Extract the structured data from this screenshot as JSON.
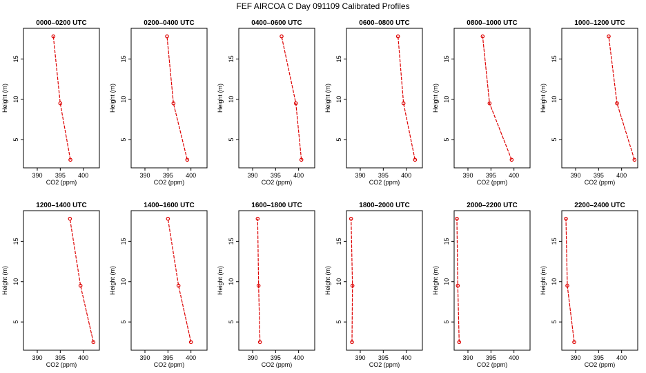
{
  "figure": {
    "title": "FEF AIRCOA C  Day 091109  Calibrated Profiles"
  },
  "style": {
    "line_color": "#dd0000",
    "axis_color": "#000000"
  },
  "chart_data": [
    {
      "type": "line",
      "title": "0000–0200 UTC",
      "xlabel": "CO2 (ppm)",
      "ylabel": "Height (m)",
      "xlim": [
        387,
        403.5
      ],
      "ylim": [
        1.5,
        18.8
      ],
      "xticks": [
        390,
        395,
        400
      ],
      "yticks": [
        5,
        10,
        15
      ],
      "series": [
        {
          "x": [
            397.2,
            395.0,
            393.5
          ],
          "y": [
            2.5,
            9.5,
            17.8
          ]
        }
      ]
    },
    {
      "type": "line",
      "title": "0200–0400 UTC",
      "xlabel": "CO2 (ppm)",
      "ylabel": "Height (m)",
      "xlim": [
        387,
        403.5
      ],
      "ylim": [
        1.5,
        18.8
      ],
      "xticks": [
        390,
        395,
        400
      ],
      "yticks": [
        5,
        10,
        15
      ],
      "series": [
        {
          "x": [
            399.2,
            396.2,
            394.8
          ],
          "y": [
            2.5,
            9.5,
            17.8
          ]
        }
      ]
    },
    {
      "type": "line",
      "title": "0400–0600 UTC",
      "xlabel": "CO2 (ppm)",
      "ylabel": "Height (m)",
      "xlim": [
        387,
        403.5
      ],
      "ylim": [
        1.5,
        18.8
      ],
      "xticks": [
        390,
        395,
        400
      ],
      "yticks": [
        5,
        10,
        15
      ],
      "series": [
        {
          "x": [
            400.6,
            399.4,
            396.3
          ],
          "y": [
            2.5,
            9.5,
            17.8
          ]
        }
      ]
    },
    {
      "type": "line",
      "title": "0600–0800 UTC",
      "xlabel": "CO2 (ppm)",
      "ylabel": "Height (m)",
      "xlim": [
        387,
        403.5
      ],
      "ylim": [
        1.5,
        18.8
      ],
      "xticks": [
        390,
        395,
        400
      ],
      "yticks": [
        5,
        10,
        15
      ],
      "series": [
        {
          "x": [
            401.9,
            399.4,
            398.2
          ],
          "y": [
            2.5,
            9.5,
            17.8
          ]
        }
      ]
    },
    {
      "type": "line",
      "title": "0800–1000 UTC",
      "xlabel": "CO2 (ppm)",
      "ylabel": "Height (m)",
      "xlim": [
        387,
        403.5
      ],
      "ylim": [
        1.5,
        18.8
      ],
      "xticks": [
        390,
        395,
        400
      ],
      "yticks": [
        5,
        10,
        15
      ],
      "series": [
        {
          "x": [
            399.5,
            394.7,
            393.2
          ],
          "y": [
            2.5,
            9.5,
            17.8
          ]
        }
      ]
    },
    {
      "type": "line",
      "title": "1000–1200 UTC",
      "xlabel": "CO2 (ppm)",
      "ylabel": "Height (m)",
      "xlim": [
        387,
        403.5
      ],
      "ylim": [
        1.5,
        18.8
      ],
      "xticks": [
        390,
        395,
        400
      ],
      "yticks": [
        5,
        10,
        15
      ],
      "series": [
        {
          "x": [
            402.8,
            399.0,
            397.2
          ],
          "y": [
            2.5,
            9.5,
            17.8
          ]
        }
      ]
    },
    {
      "type": "line",
      "title": "1200–1400 UTC",
      "xlabel": "CO2 (ppm)",
      "ylabel": "Height (m)",
      "xlim": [
        387,
        403.5
      ],
      "ylim": [
        1.5,
        18.8
      ],
      "xticks": [
        390,
        395,
        400
      ],
      "yticks": [
        5,
        10,
        15
      ],
      "series": [
        {
          "x": [
            402.2,
            399.4,
            397.1
          ],
          "y": [
            2.5,
            9.5,
            17.8
          ]
        }
      ]
    },
    {
      "type": "line",
      "title": "1400–1600 UTC",
      "xlabel": "CO2 (ppm)",
      "ylabel": "Height (m)",
      "xlim": [
        387,
        403.5
      ],
      "ylim": [
        1.5,
        18.8
      ],
      "xticks": [
        390,
        395,
        400
      ],
      "yticks": [
        5,
        10,
        15
      ],
      "series": [
        {
          "x": [
            400.0,
            397.3,
            395.0
          ],
          "y": [
            2.5,
            9.5,
            17.8
          ]
        }
      ]
    },
    {
      "type": "line",
      "title": "1600–1800 UTC",
      "xlabel": "CO2 (ppm)",
      "ylabel": "Height (m)",
      "xlim": [
        387,
        403.5
      ],
      "ylim": [
        1.5,
        18.8
      ],
      "xticks": [
        390,
        395,
        400
      ],
      "yticks": [
        5,
        10,
        15
      ],
      "series": [
        {
          "x": [
            391.6,
            391.3,
            391.1
          ],
          "y": [
            2.5,
            9.5,
            17.8
          ]
        }
      ]
    },
    {
      "type": "line",
      "title": "1800–2000 UTC",
      "xlabel": "CO2 (ppm)",
      "ylabel": "Height (m)",
      "xlim": [
        387,
        403.5
      ],
      "ylim": [
        1.5,
        18.8
      ],
      "xticks": [
        390,
        395,
        400
      ],
      "yticks": [
        5,
        10,
        15
      ],
      "series": [
        {
          "x": [
            388.2,
            388.3,
            388.0
          ],
          "y": [
            2.5,
            9.5,
            17.8
          ]
        }
      ]
    },
    {
      "type": "line",
      "title": "2000–2200 UTC",
      "xlabel": "CO2 (ppm)",
      "ylabel": "Height (m)",
      "xlim": [
        387,
        403.5
      ],
      "ylim": [
        1.5,
        18.8
      ],
      "xticks": [
        390,
        395,
        400
      ],
      "yticks": [
        5,
        10,
        15
      ],
      "series": [
        {
          "x": [
            388.1,
            387.8,
            387.6
          ],
          "y": [
            2.5,
            9.5,
            17.8
          ]
        }
      ]
    },
    {
      "type": "line",
      "title": "2200–2400 UTC",
      "xlabel": "CO2 (ppm)",
      "ylabel": "Height (m)",
      "xlim": [
        387,
        403.5
      ],
      "ylim": [
        1.5,
        18.8
      ],
      "xticks": [
        390,
        395,
        400
      ],
      "yticks": [
        5,
        10,
        15
      ],
      "series": [
        {
          "x": [
            389.7,
            388.2,
            387.9
          ],
          "y": [
            2.5,
            9.5,
            17.8
          ]
        }
      ]
    }
  ]
}
